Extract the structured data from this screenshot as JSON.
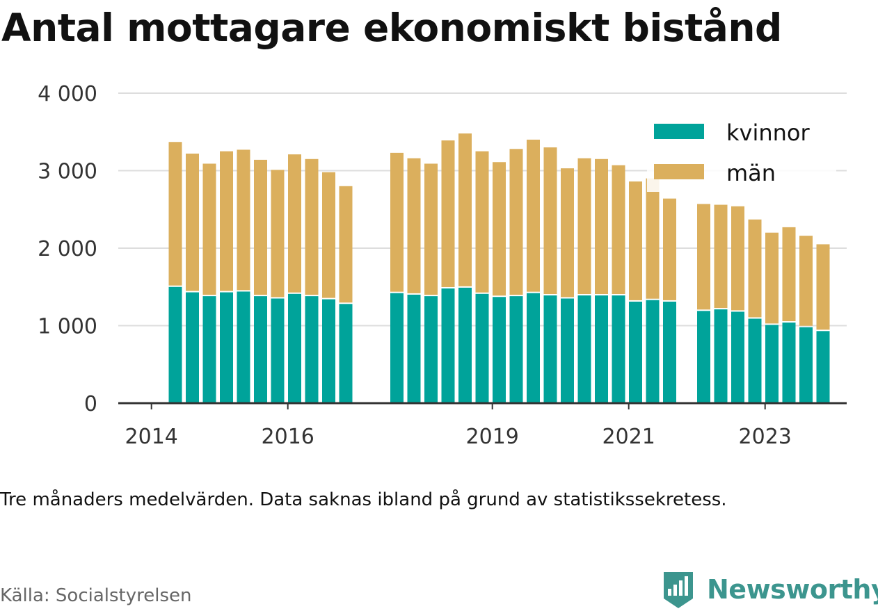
{
  "page": {
    "title": "Antal mottagare ekonomiskt bistånd",
    "note": "Tre månaders medelvärden. Data saknas ibland på grund av statistikssekretess.",
    "source": "Källa: Socialstyrelsen",
    "brand": "Newsworthy",
    "brand_icon": "newsworthy-logo-icon",
    "brand_color": "#3c958e"
  },
  "chart_data": {
    "type": "bar",
    "stacked": true,
    "title": "Antal mottagare ekonomiskt bistånd",
    "xlabel": "",
    "ylabel": "",
    "ylim": [
      0,
      4000
    ],
    "yticks": [
      0,
      1000,
      2000,
      3000,
      4000
    ],
    "ytick_labels": [
      "0",
      "1 000",
      "2 000",
      "3 000",
      "4 000"
    ],
    "xtick_labels": [
      "2014",
      "2016",
      "2019",
      "2021",
      "2023"
    ],
    "grid": true,
    "legend": "top-right",
    "categories": [
      "2014-Q2",
      "2014-Q3",
      "2014-Q4",
      "2015-Q1",
      "2015-Q2",
      "2015-Q3",
      "2015-Q4",
      "2016-Q1",
      "2016-Q2",
      "2016-Q3",
      "2016-Q4",
      "2017-Q1",
      "2017-Q2",
      "2017-Q3",
      "2017-Q4",
      "2018-Q1",
      "2018-Q2",
      "2018-Q3",
      "2018-Q4",
      "2019-Q1",
      "2019-Q2",
      "2019-Q3",
      "2019-Q4",
      "2020-Q1",
      "2020-Q2",
      "2020-Q3",
      "2020-Q4",
      "2021-Q1",
      "2021-Q2",
      "2021-Q3",
      "2021-Q4",
      "2022-Q1",
      "2022-Q2",
      "2022-Q3",
      "2022-Q4",
      "2023-Q1",
      "2023-Q2",
      "2023-Q3",
      "2023-Q4"
    ],
    "series": [
      {
        "name": "kvinnor",
        "color": "#00a39a",
        "values": [
          1500,
          1430,
          1380,
          1430,
          1440,
          1380,
          1350,
          1410,
          1380,
          1340,
          1280,
          null,
          null,
          1420,
          1400,
          1380,
          1480,
          1490,
          1410,
          1370,
          1380,
          1420,
          1390,
          1350,
          1390,
          1390,
          1390,
          1310,
          1330,
          1310,
          null,
          1190,
          1210,
          1180,
          1090,
          1010,
          1040,
          980,
          930
        ]
      },
      {
        "name": "män",
        "color": "#dbaf5d",
        "values": [
          1870,
          1790,
          1710,
          1820,
          1830,
          1760,
          1660,
          1800,
          1770,
          1640,
          1520,
          null,
          null,
          1810,
          1760,
          1710,
          1910,
          1990,
          1840,
          1740,
          1900,
          1980,
          1910,
          1680,
          1770,
          1760,
          1680,
          1550,
          1570,
          1330,
          null,
          1380,
          1350,
          1360,
          1280,
          1190,
          1230,
          1180,
          1120
        ]
      }
    ]
  }
}
